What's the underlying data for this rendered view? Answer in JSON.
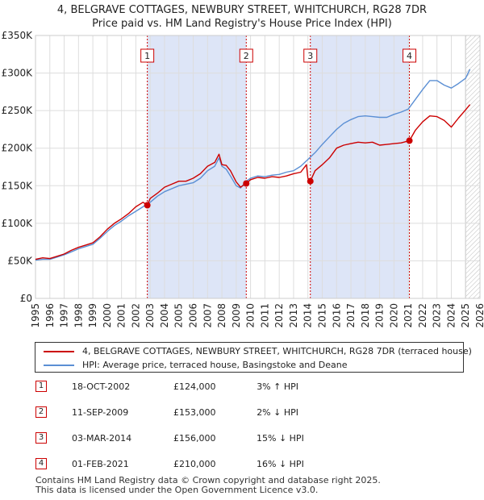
{
  "title_line1": "4, BELGRAVE COTTAGES, NEWBURY STREET, WHITCHURCH, RG28 7DR",
  "title_line2": "Price paid vs. HM Land Registry's House Price Index (HPI)",
  "colors": {
    "property": "#cc0000",
    "hpi": "#5b8fd4",
    "shade": "#dde5f7",
    "marker": "#cc0000"
  },
  "legend": {
    "property": "4, BELGRAVE COTTAGES, NEWBURY STREET, WHITCHURCH, RG28 7DR (terraced house)",
    "hpi": "HPI: Average price, terraced house, Basingstoke and Deane"
  },
  "sales": [
    {
      "num": "1",
      "date": "18-OCT-2002",
      "price": "£124,000",
      "hpi_rel": "3% ↑ HPI"
    },
    {
      "num": "2",
      "date": "11-SEP-2009",
      "price": "£153,000",
      "hpi_rel": "2% ↓ HPI"
    },
    {
      "num": "3",
      "date": "03-MAR-2014",
      "price": "£156,000",
      "hpi_rel": "15% ↓ HPI"
    },
    {
      "num": "4",
      "date": "01-FEB-2021",
      "price": "£210,000",
      "hpi_rel": "16% ↓ HPI"
    }
  ],
  "footer_line1": "Contains HM Land Registry data © Crown copyright and database right 2025.",
  "footer_line2": "This data is licensed under the Open Government Licence v3.0.",
  "chart_data": {
    "type": "line",
    "title": "4, BELGRAVE COTTAGES, NEWBURY STREET, WHITCHURCH, RG28 7DR — Price paid vs. HM Land Registry's House Price Index (HPI)",
    "xlabel": "",
    "ylabel": "",
    "xlim": [
      1995,
      2026
    ],
    "ylim": [
      0,
      350000
    ],
    "y_ticks": [
      0,
      50000,
      100000,
      150000,
      200000,
      250000,
      300000,
      350000
    ],
    "y_tick_labels": [
      "£0",
      "£50K",
      "£100K",
      "£150K",
      "£200K",
      "£250K",
      "£300K",
      "£350K"
    ],
    "x_ticks": [
      1995,
      1996,
      1997,
      1998,
      1999,
      2000,
      2001,
      2002,
      2003,
      2004,
      2005,
      2006,
      2007,
      2008,
      2009,
      2010,
      2011,
      2012,
      2013,
      2014,
      2015,
      2016,
      2017,
      2018,
      2019,
      2020,
      2021,
      2022,
      2023,
      2024,
      2025,
      2026
    ],
    "x_tick_labels": [
      "1995",
      "1996",
      "1997",
      "1998",
      "1999",
      "2000",
      "2001",
      "2002",
      "2003",
      "2004",
      "2005",
      "2006",
      "2007",
      "2008",
      "2009",
      "2010",
      "2011",
      "2012",
      "2013",
      "2014",
      "2015",
      "2016",
      "2017",
      "2018",
      "2019",
      "2020",
      "2021",
      "2022",
      "2023",
      "2024",
      "2025",
      "2026"
    ],
    "grid": true,
    "shaded_periods": [
      [
        2002.8,
        2009.7
      ],
      [
        2014.17,
        2021.08
      ]
    ],
    "forecast_start": 2025.0,
    "sale_markers": [
      {
        "label": "1",
        "x": 2002.8,
        "y": 124000
      },
      {
        "label": "2",
        "x": 2009.7,
        "y": 153000
      },
      {
        "label": "3",
        "x": 2014.17,
        "y": 156000
      },
      {
        "label": "4",
        "x": 2021.08,
        "y": 210000
      }
    ],
    "series": [
      {
        "name": "4, BELGRAVE COTTAGES, NEWBURY STREET, WHITCHURCH, RG28 7DR (terraced house)",
        "x": [
          1995.0,
          1995.5,
          1996.0,
          1996.5,
          1997.0,
          1997.5,
          1998.0,
          1998.5,
          1999.0,
          1999.5,
          2000.0,
          2000.5,
          2001.0,
          2001.5,
          2002.0,
          2002.5,
          2002.8,
          2003.0,
          2003.5,
          2004.0,
          2004.5,
          2005.0,
          2005.5,
          2006.0,
          2006.5,
          2007.0,
          2007.5,
          2007.8,
          2008.0,
          2008.3,
          2008.6,
          2009.0,
          2009.3,
          2009.7,
          2010.0,
          2010.5,
          2011.0,
          2011.5,
          2012.0,
          2012.5,
          2013.0,
          2013.5,
          2013.9,
          2014.0,
          2014.17,
          2014.5,
          2015.0,
          2015.5,
          2016.0,
          2016.5,
          2017.0,
          2017.5,
          2018.0,
          2018.5,
          2019.0,
          2019.5,
          2020.0,
          2020.5,
          2021.08,
          2021.5,
          2022.0,
          2022.5,
          2023.0,
          2023.5,
          2024.0,
          2024.5,
          2025.0,
          2025.3
        ],
        "y": [
          52000,
          54000,
          53000,
          56000,
          59000,
          64000,
          68000,
          71000,
          74000,
          82000,
          92000,
          100000,
          106000,
          113000,
          122000,
          128000,
          124000,
          133000,
          140000,
          148000,
          152000,
          156000,
          156000,
          160000,
          166000,
          176000,
          181000,
          192000,
          178000,
          177000,
          170000,
          155000,
          148000,
          153000,
          158000,
          161000,
          160000,
          162000,
          161000,
          163000,
          166000,
          168000,
          178000,
          160000,
          156000,
          170000,
          178000,
          187000,
          200000,
          204000,
          206000,
          208000,
          207000,
          208000,
          204000,
          205000,
          206000,
          207000,
          210000,
          224000,
          235000,
          243000,
          242000,
          237000,
          228000,
          240000,
          251000,
          258000
        ]
      },
      {
        "name": "HPI: Average price, terraced house, Basingstoke and Deane",
        "x": [
          1995.0,
          1995.5,
          1996.0,
          1996.5,
          1997.0,
          1997.5,
          1998.0,
          1998.5,
          1999.0,
          1999.5,
          2000.0,
          2000.5,
          2001.0,
          2001.5,
          2002.0,
          2002.5,
          2003.0,
          2003.5,
          2004.0,
          2004.5,
          2005.0,
          2005.5,
          2006.0,
          2006.5,
          2007.0,
          2007.5,
          2007.8,
          2008.0,
          2008.3,
          2008.6,
          2009.0,
          2009.3,
          2009.7,
          2010.0,
          2010.5,
          2011.0,
          2011.5,
          2012.0,
          2012.5,
          2013.0,
          2013.5,
          2014.0,
          2014.5,
          2015.0,
          2015.5,
          2016.0,
          2016.5,
          2017.0,
          2017.5,
          2018.0,
          2018.5,
          2019.0,
          2019.5,
          2020.0,
          2020.5,
          2021.0,
          2021.5,
          2022.0,
          2022.5,
          2023.0,
          2023.5,
          2024.0,
          2024.5,
          2025.0,
          2025.3
        ],
        "y": [
          51000,
          52000,
          52000,
          55000,
          58000,
          62000,
          66000,
          69000,
          72000,
          80000,
          89000,
          97000,
          103000,
          110000,
          116000,
          122000,
          128000,
          136000,
          142000,
          146000,
          150000,
          152000,
          154000,
          160000,
          170000,
          176000,
          187000,
          176000,
          172000,
          163000,
          150000,
          147000,
          156000,
          160000,
          163000,
          162000,
          164000,
          165000,
          168000,
          170000,
          176000,
          185000,
          194000,
          205000,
          215000,
          225000,
          233000,
          238000,
          242000,
          243000,
          242000,
          241000,
          241000,
          245000,
          248000,
          252000,
          265000,
          278000,
          290000,
          290000,
          284000,
          280000,
          286000,
          293000,
          305000
        ]
      }
    ]
  }
}
